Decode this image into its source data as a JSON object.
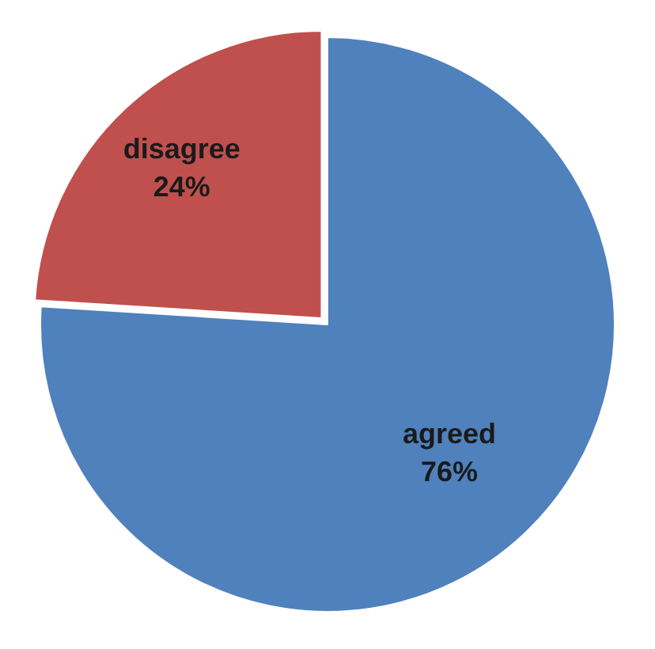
{
  "chart_data": {
    "type": "pie",
    "categories": [
      "agreed",
      "disagree"
    ],
    "values": [
      76,
      24
    ],
    "colors": [
      "#4f81bd",
      "#c0504d"
    ],
    "value_labels": [
      "76%",
      "24%"
    ],
    "legend": false
  }
}
